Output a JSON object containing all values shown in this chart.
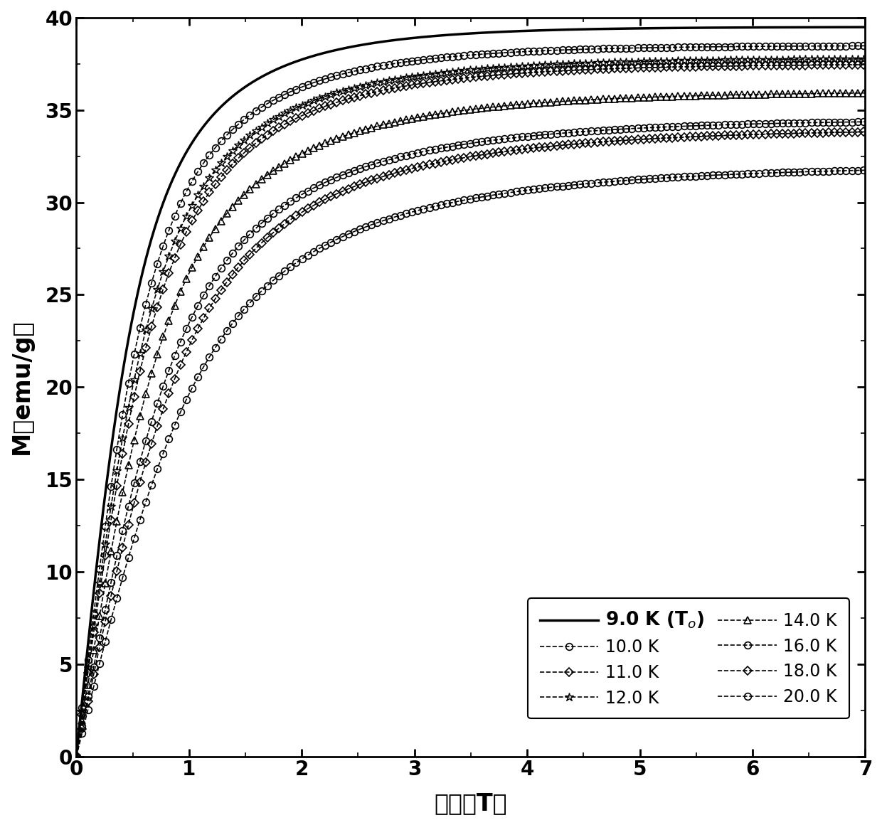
{
  "xlabel": "磁场（T）",
  "ylabel": "M（emu/g）",
  "xlim": [
    0,
    7
  ],
  "ylim": [
    0,
    40
  ],
  "xticks": [
    0,
    1,
    2,
    3,
    4,
    5,
    6,
    7
  ],
  "yticks": [
    0,
    5,
    10,
    15,
    20,
    25,
    30,
    35,
    40
  ],
  "curves": [
    {
      "T": 9.0,
      "label": "9.0 K (T$_o$)",
      "linestyle": "-",
      "marker": "None",
      "M_sat": 39.5,
      "J": 3.5,
      "scale": 3.5,
      "lw": 2.5
    },
    {
      "T": 10.0,
      "label": "10.0 K",
      "linestyle": "--",
      "marker": "o",
      "M_sat": 38.5,
      "J": 3.5,
      "scale": 3.1,
      "lw": 1.2
    },
    {
      "T": 11.0,
      "label": "11.0 K",
      "linestyle": "--",
      "marker": "D",
      "M_sat": 37.5,
      "J": 3.5,
      "scale": 2.75,
      "lw": 1.2
    },
    {
      "T": 12.0,
      "label": "12.0 K",
      "linestyle": "--",
      "marker": "*",
      "M_sat": 37.8,
      "J": 3.5,
      "scale": 2.9,
      "lw": 1.2
    },
    {
      "T": 14.0,
      "label": "14.0 K",
      "linestyle": "--",
      "marker": "^",
      "M_sat": 36.0,
      "J": 3.5,
      "scale": 2.45,
      "lw": 1.2
    },
    {
      "T": 16.0,
      "label": "16.0 K",
      "linestyle": "--",
      "marker": "o",
      "M_sat": 34.5,
      "J": 3.5,
      "scale": 2.15,
      "lw": 1.2
    },
    {
      "T": 18.0,
      "label": "18.0 K",
      "linestyle": "--",
      "marker": "D",
      "M_sat": 34.0,
      "J": 3.5,
      "scale": 2.0,
      "lw": 1.2
    },
    {
      "T": 20.0,
      "label": "20.0 K",
      "linestyle": "--",
      "marker": "o",
      "M_sat": 32.0,
      "J": 3.5,
      "scale": 1.8,
      "lw": 1.2
    }
  ],
  "marker_size": 7,
  "marker_every": 22,
  "color": "#000000",
  "figsize": [
    12.4,
    11.6
  ],
  "dpi": 100,
  "legend_fontsize": 17,
  "tick_labelsize": 20,
  "axis_labelsize": 24
}
